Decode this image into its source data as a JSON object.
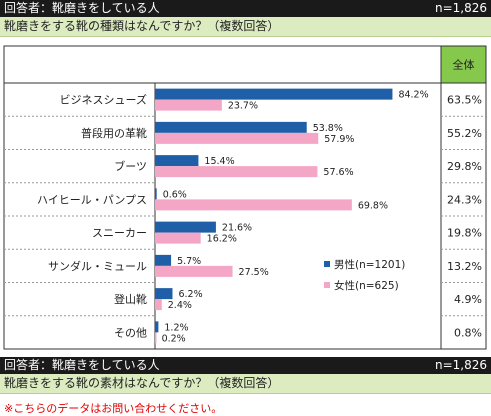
{
  "section1": {
    "respondent": "回答者：靴磨きをしている人",
    "n": "n=1,826",
    "question": "靴磨きをする靴の種類はなんですか？（複数回答）"
  },
  "section2": {
    "respondent": "回答者：靴磨きをしている人",
    "n": "n=1,826",
    "question": "靴磨きをする靴の素材はなんですか？（複数回答）"
  },
  "note": "※こちらのデータはお問い合わせください。",
  "colors": {
    "male": "#1f5fa8",
    "female": "#f4a6c6",
    "total_header": "#86c84c"
  },
  "chart_data": {
    "type": "bar",
    "orientation": "horizontal",
    "categories": [
      "ビジネスシューズ",
      "普段用の革靴",
      "ブーツ",
      "ハイヒール・パンプス",
      "スニーカー",
      "サンダル・ミュール",
      "登山靴",
      "その他"
    ],
    "series": [
      {
        "name": "男性(n=1201)",
        "values": [
          84.2,
          53.8,
          15.4,
          0.6,
          21.6,
          5.7,
          6.2,
          1.2
        ]
      },
      {
        "name": "女性(n=625)",
        "values": [
          23.7,
          57.9,
          57.6,
          69.8,
          16.2,
          27.5,
          2.4,
          0.2
        ]
      }
    ],
    "total_header": "全体",
    "total_values": [
      "63.5%",
      "55.2%",
      "29.8%",
      "24.3%",
      "19.8%",
      "13.2%",
      "4.9%",
      "0.8%"
    ],
    "xlim": [
      0,
      100
    ],
    "legend_position": "lower-right"
  }
}
